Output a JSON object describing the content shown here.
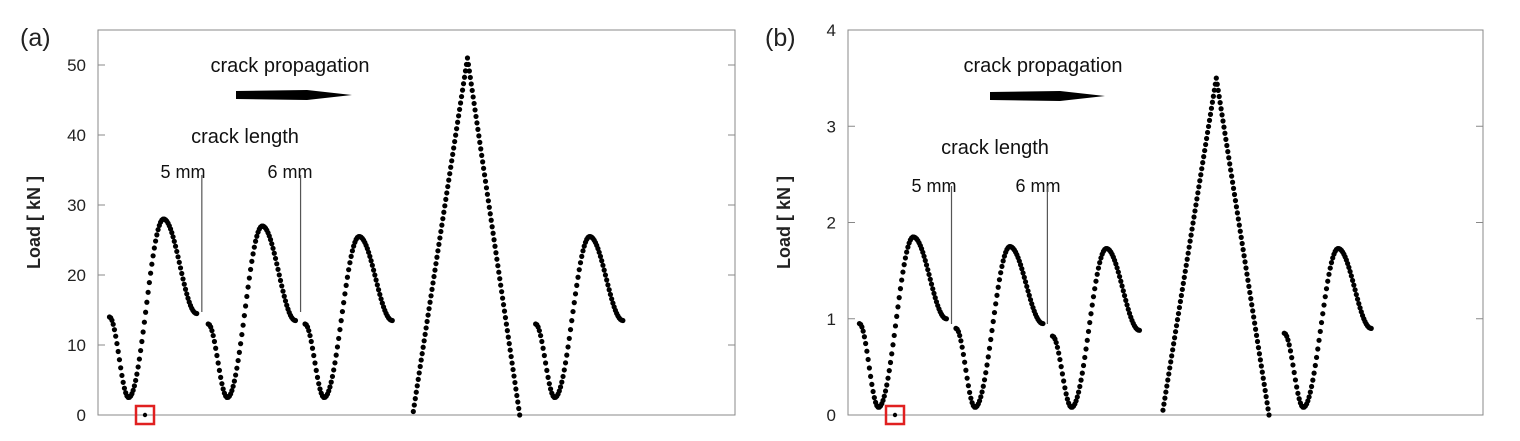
{
  "chart_data": [
    {
      "type": "scatter",
      "panel_label": "(a)",
      "ylabel": "Load [ kN ]",
      "ylim": [
        0,
        55
      ],
      "yticks": [
        0,
        10,
        20,
        30,
        40,
        50
      ],
      "grid": false,
      "legend": "none",
      "annotations": {
        "direction": "crack propagation",
        "crack_length_heading": "crack length",
        "segment_labels": [
          "5 mm",
          "6 mm"
        ]
      },
      "highlight": {
        "x": 0,
        "y": 0,
        "color": "#e02020"
      },
      "marker_color": "#000000",
      "series": [
        {
          "shape": "sine",
          "x_start": 0.018,
          "x_end": 0.155,
          "y_start": 14,
          "y_min": 2.5,
          "y_max": 28,
          "y_end": 14.5
        },
        {
          "shape": "sine",
          "x_start": 0.173,
          "x_end": 0.31,
          "y_start": 13,
          "y_min": 2.5,
          "y_max": 27,
          "y_end": 13.5
        },
        {
          "shape": "sine",
          "x_start": 0.325,
          "x_end": 0.462,
          "y_start": 13,
          "y_min": 2.5,
          "y_max": 25.5,
          "y_end": 13.5
        },
        {
          "shape": "triangle",
          "x_start": 0.495,
          "x_peak": 0.58,
          "x_end": 0.662,
          "y_start": 0.5,
          "y_max": 51,
          "y_end": 0
        },
        {
          "shape": "sine",
          "x_start": 0.687,
          "x_end": 0.824,
          "y_start": 13,
          "y_min": 2.5,
          "y_max": 25.5,
          "y_end": 13.5
        }
      ],
      "dividers_x": [
        0.163,
        0.318
      ]
    },
    {
      "type": "scatter",
      "panel_label": "(b)",
      "ylabel": "Load [ kN ]",
      "ylim": [
        0,
        4
      ],
      "yticks": [
        0,
        1,
        2,
        3,
        4
      ],
      "grid": false,
      "legend": "none",
      "annotations": {
        "direction": "crack propagation",
        "crack_length_heading": "crack length",
        "segment_labels": [
          "5 mm",
          "6 mm"
        ]
      },
      "highlight": {
        "x": 0,
        "y": 0,
        "color": "#e02020"
      },
      "marker_color": "#000000",
      "series": [
        {
          "shape": "sine",
          "x_start": 0.018,
          "x_end": 0.155,
          "y_start": 0.95,
          "y_min": 0.08,
          "y_max": 1.85,
          "y_end": 1.0
        },
        {
          "shape": "sine",
          "x_start": 0.17,
          "x_end": 0.307,
          "y_start": 0.9,
          "y_min": 0.08,
          "y_max": 1.75,
          "y_end": 0.95
        },
        {
          "shape": "sine",
          "x_start": 0.322,
          "x_end": 0.459,
          "y_start": 0.82,
          "y_min": 0.08,
          "y_max": 1.73,
          "y_end": 0.88
        },
        {
          "shape": "triangle",
          "x_start": 0.496,
          "x_peak": 0.58,
          "x_end": 0.663,
          "y_start": 0.05,
          "y_max": 3.5,
          "y_end": 0
        },
        {
          "shape": "sine",
          "x_start": 0.687,
          "x_end": 0.824,
          "y_start": 0.85,
          "y_min": 0.08,
          "y_max": 1.73,
          "y_end": 0.9
        }
      ],
      "dividers_x": [
        0.163,
        0.314
      ]
    }
  ]
}
